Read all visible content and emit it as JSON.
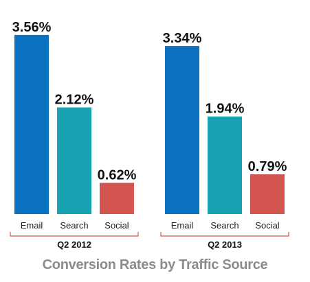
{
  "chart_data": {
    "type": "bar",
    "title": "Conversion Rates by Traffic Source",
    "categories": [
      "Email",
      "Search",
      "Social"
    ],
    "groups": [
      {
        "name": "Q2 2012",
        "values": [
          3.56,
          2.12,
          0.62
        ],
        "labels": [
          "3.56%",
          "2.12%",
          "0.62%"
        ]
      },
      {
        "name": "Q2 2013",
        "values": [
          3.34,
          1.94,
          0.79
        ],
        "labels": [
          "3.34%",
          "1.94%",
          "0.79%"
        ]
      }
    ],
    "unit": "%",
    "ylim": [
      0,
      3.6
    ],
    "colors": [
      "#0a72c0",
      "#17a3b1",
      "#d45550"
    ],
    "bracket_color": "#d9534f",
    "grid": false,
    "legend": "none"
  }
}
